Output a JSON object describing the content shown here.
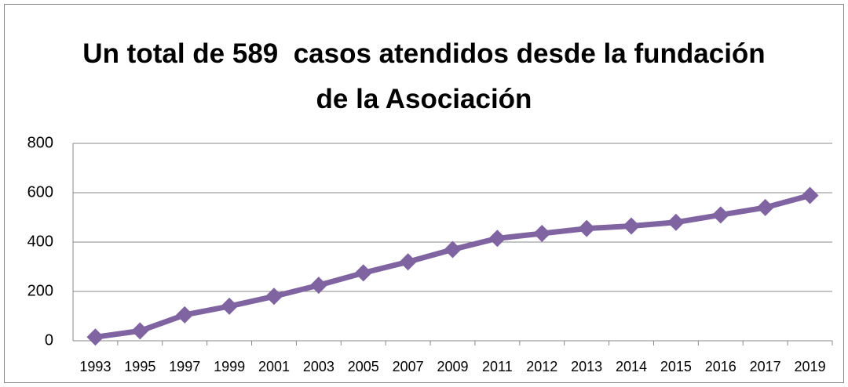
{
  "chart_data": {
    "type": "line",
    "title": "Un total de 589  casos atendidos desde la fundación de la Asociación",
    "categories": [
      "1993",
      "1995",
      "1997",
      "1999",
      "2001",
      "2003",
      "2005",
      "2007",
      "2009",
      "2011",
      "2012",
      "2013",
      "2014",
      "2015",
      "2016",
      "2017",
      "2019"
    ],
    "series": [
      {
        "name": "Casos",
        "color": "#8064a2",
        "values": [
          15,
          40,
          105,
          140,
          180,
          225,
          275,
          320,
          370,
          415,
          435,
          455,
          465,
          480,
          510,
          540,
          589
        ]
      }
    ],
    "ylim": [
      0,
      800
    ],
    "yticks": [
      0,
      200,
      400,
      600,
      800
    ],
    "grid": true
  }
}
